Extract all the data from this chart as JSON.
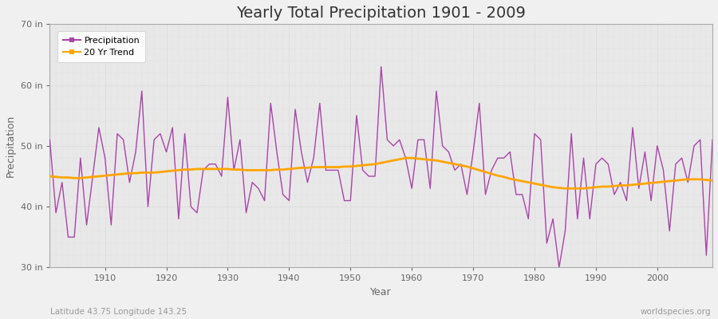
{
  "title": "Yearly Total Precipitation 1901 - 2009",
  "xlabel": "Year",
  "ylabel": "Precipitation",
  "bottom_left": "Latitude 43.75 Longitude 143.25",
  "bottom_right": "worldspecies.org",
  "ylim": [
    30,
    70
  ],
  "yticks": [
    30,
    40,
    50,
    60,
    70
  ],
  "ytick_labels": [
    "30 in",
    "40 in",
    "50 in",
    "60 in",
    "70 in"
  ],
  "xlim": [
    1901,
    2009
  ],
  "xticks": [
    1910,
    1920,
    1930,
    1940,
    1950,
    1960,
    1970,
    1980,
    1990,
    2000
  ],
  "precip_color": "#AA44AA",
  "trend_color": "#FFA500",
  "bg_color": "#F0F0F0",
  "plot_bg_color": "#E8E8E8",
  "legend_items": [
    "Precipitation",
    "20 Yr Trend"
  ],
  "years": [
    1901,
    1902,
    1903,
    1904,
    1905,
    1906,
    1907,
    1908,
    1909,
    1910,
    1911,
    1912,
    1913,
    1914,
    1915,
    1916,
    1917,
    1918,
    1919,
    1920,
    1921,
    1922,
    1923,
    1924,
    1925,
    1926,
    1927,
    1928,
    1929,
    1930,
    1931,
    1932,
    1933,
    1934,
    1935,
    1936,
    1937,
    1938,
    1939,
    1940,
    1941,
    1942,
    1943,
    1944,
    1945,
    1946,
    1947,
    1948,
    1949,
    1950,
    1951,
    1952,
    1953,
    1954,
    1955,
    1956,
    1957,
    1958,
    1959,
    1960,
    1961,
    1962,
    1963,
    1964,
    1965,
    1966,
    1967,
    1968,
    1969,
    1970,
    1971,
    1972,
    1973,
    1974,
    1975,
    1976,
    1977,
    1978,
    1979,
    1980,
    1981,
    1982,
    1983,
    1984,
    1985,
    1986,
    1987,
    1988,
    1989,
    1990,
    1991,
    1992,
    1993,
    1994,
    1995,
    1996,
    1997,
    1998,
    1999,
    2000,
    2001,
    2002,
    2003,
    2004,
    2005,
    2006,
    2007,
    2008,
    2009
  ],
  "precip": [
    51,
    39,
    44,
    35,
    35,
    48,
    37,
    45,
    53,
    48,
    37,
    52,
    51,
    44,
    49,
    59,
    40,
    51,
    52,
    49,
    53,
    38,
    52,
    40,
    39,
    46,
    47,
    47,
    45,
    58,
    46,
    51,
    39,
    44,
    43,
    41,
    57,
    49,
    42,
    41,
    56,
    49,
    44,
    48,
    57,
    46,
    46,
    46,
    41,
    41,
    55,
    46,
    45,
    45,
    63,
    51,
    50,
    51,
    48,
    43,
    51,
    51,
    43,
    59,
    50,
    49,
    46,
    47,
    42,
    49,
    57,
    42,
    46,
    48,
    48,
    49,
    42,
    42,
    38,
    52,
    51,
    34,
    38,
    30,
    36,
    52,
    38,
    48,
    38,
    47,
    48,
    47,
    42,
    44,
    41,
    53,
    43,
    49,
    41,
    50,
    46,
    36,
    47,
    48,
    44,
    50,
    51,
    32,
    51
  ],
  "trend": [
    45.0,
    44.9,
    44.8,
    44.8,
    44.7,
    44.7,
    44.8,
    44.9,
    45.0,
    45.1,
    45.2,
    45.3,
    45.4,
    45.5,
    45.5,
    45.6,
    45.6,
    45.6,
    45.7,
    45.8,
    45.9,
    46.0,
    46.1,
    46.1,
    46.2,
    46.2,
    46.2,
    46.2,
    46.2,
    46.2,
    46.1,
    46.1,
    46.0,
    46.0,
    46.0,
    46.0,
    46.0,
    46.1,
    46.1,
    46.2,
    46.3,
    46.4,
    46.4,
    46.5,
    46.5,
    46.5,
    46.5,
    46.5,
    46.6,
    46.6,
    46.7,
    46.8,
    46.9,
    47.0,
    47.2,
    47.4,
    47.6,
    47.8,
    48.0,
    48.0,
    47.9,
    47.8,
    47.7,
    47.6,
    47.4,
    47.2,
    47.0,
    46.8,
    46.6,
    46.3,
    46.0,
    45.7,
    45.4,
    45.1,
    44.9,
    44.6,
    44.4,
    44.2,
    44.0,
    43.8,
    43.6,
    43.4,
    43.2,
    43.1,
    43.0,
    43.0,
    43.0,
    43.0,
    43.1,
    43.2,
    43.3,
    43.3,
    43.4,
    43.5,
    43.5,
    43.6,
    43.7,
    43.8,
    43.9,
    44.0,
    44.1,
    44.2,
    44.3,
    44.4,
    44.5,
    44.5,
    44.5,
    44.4,
    44.3
  ]
}
